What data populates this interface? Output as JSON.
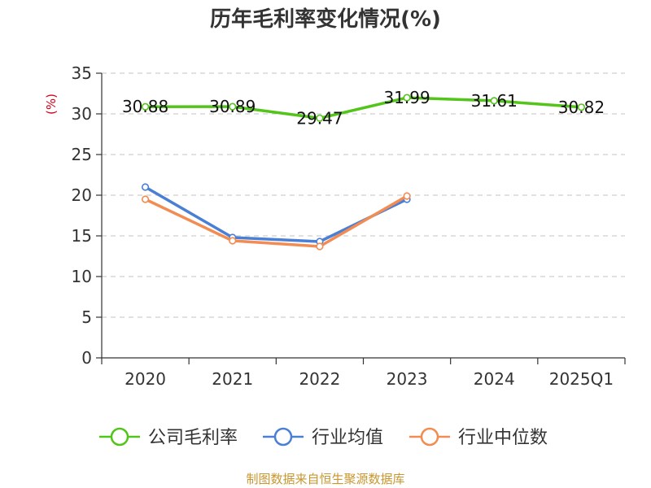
{
  "chart_data": {
    "type": "line",
    "title": "历年毛利率变化情况(%)",
    "ylabel": "(%)",
    "categories": [
      "2020",
      "2021",
      "2022",
      "2023",
      "2024",
      "2025Q1"
    ],
    "ylim": [
      0,
      35
    ],
    "yticks": [
      0,
      5,
      10,
      15,
      20,
      25,
      30,
      35
    ],
    "grid": true,
    "legend_position": "bottom",
    "series": [
      {
        "name": "公司毛利率",
        "color": "#52c41a",
        "values": [
          30.88,
          30.89,
          29.47,
          31.99,
          31.61,
          30.82
        ],
        "labels": [
          "30.88",
          "30.89",
          "29.47",
          "31.99",
          "31.61",
          "30.82"
        ]
      },
      {
        "name": "行业均值",
        "color": "#4a7fd6",
        "values": [
          21.0,
          14.8,
          14.3,
          19.5,
          null,
          null
        ]
      },
      {
        "name": "行业中位数",
        "color": "#f28c52",
        "values": [
          19.5,
          14.4,
          13.7,
          19.9,
          null,
          null
        ]
      }
    ]
  },
  "source_text": "制图数据来自恒生聚源数据库"
}
